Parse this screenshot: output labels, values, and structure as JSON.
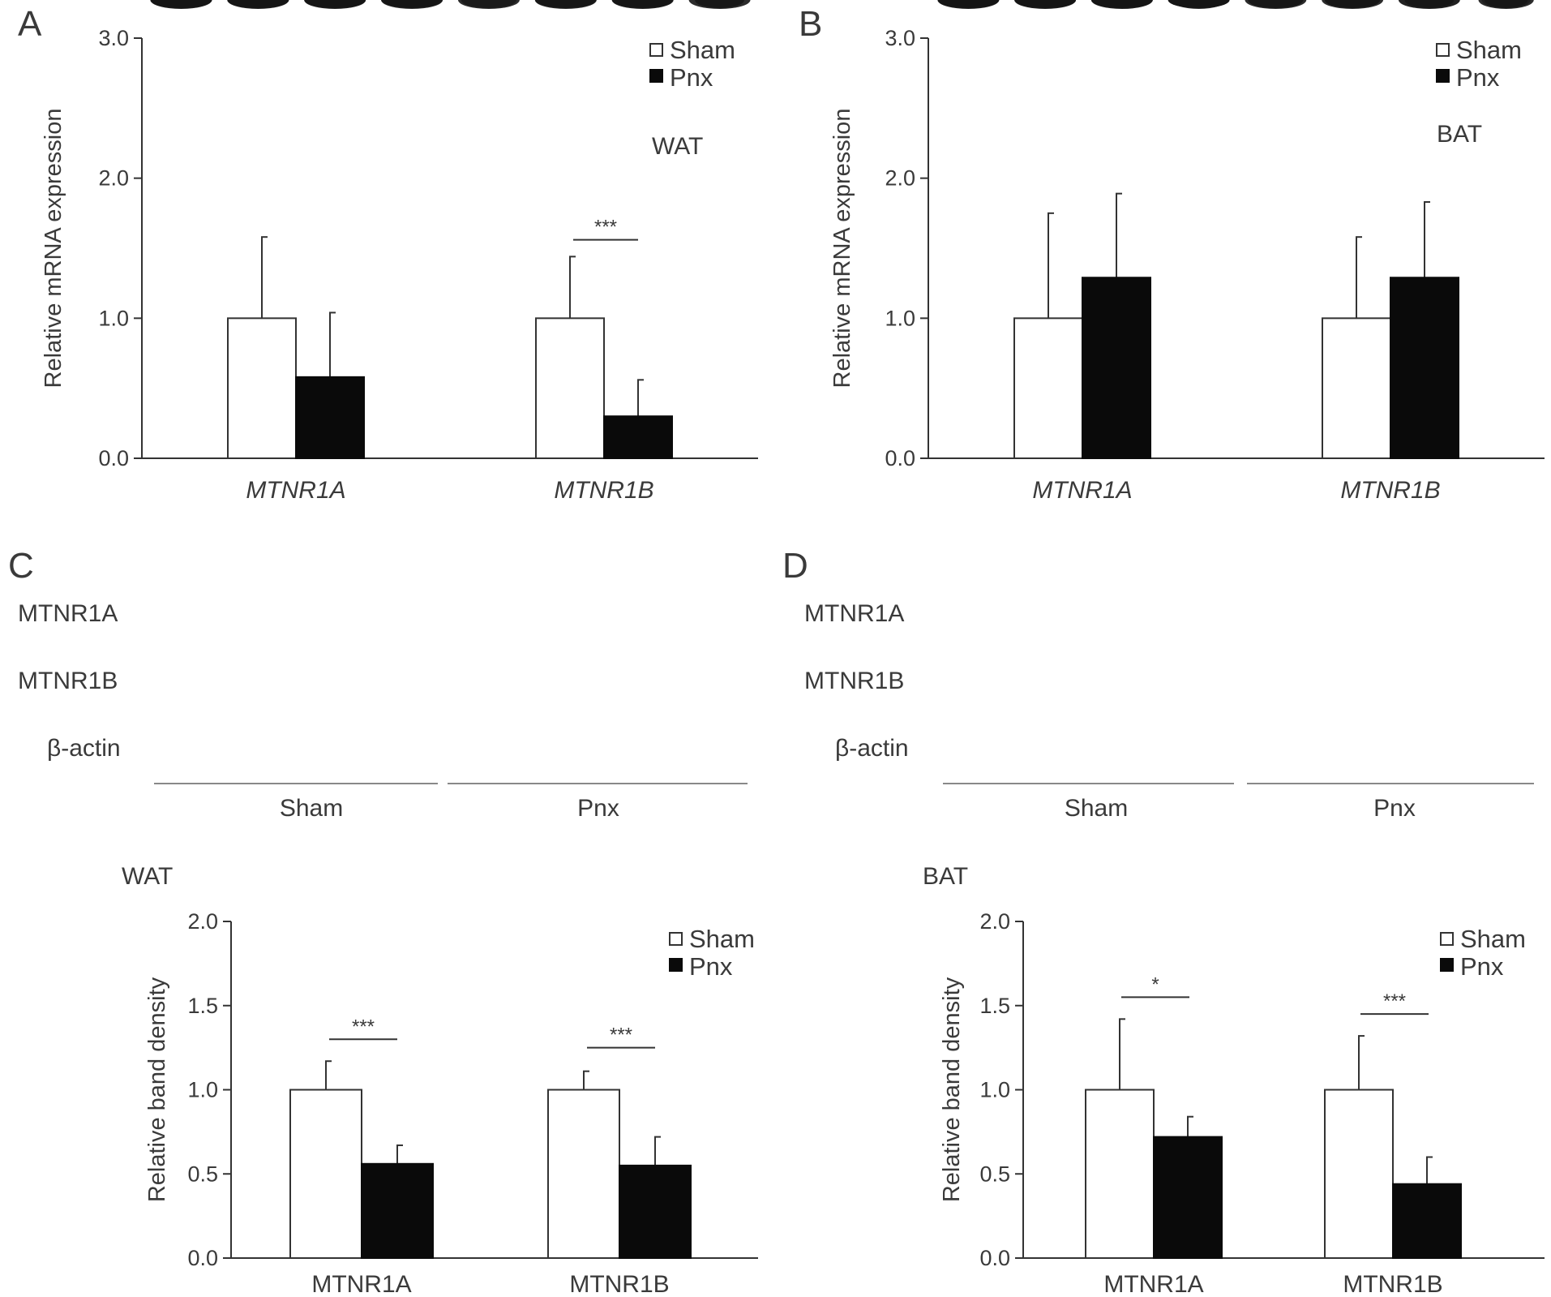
{
  "panel_letters": {
    "A": "A",
    "B": "B",
    "C": "C",
    "D": "D"
  },
  "colors": {
    "sham": "#ffffff",
    "pnx": "#0a0a0a",
    "axis": "#333333",
    "blot_bg": "#cfcfcf"
  },
  "legend": {
    "sham": "Sham",
    "pnx": "Pnx"
  },
  "blots": {
    "C": {
      "rows": [
        "MTNR1A",
        "MTNR1B",
        "β-actin"
      ],
      "groups": [
        "Sham",
        "Pnx"
      ]
    },
    "D": {
      "rows": [
        "MTNR1A",
        "MTNR1B",
        "β-actin"
      ],
      "groups": [
        "Sham",
        "Pnx"
      ]
    }
  },
  "chart_data": [
    {
      "id": "A",
      "type": "bar",
      "annotation": "WAT",
      "ylabel": "Relative mRNA expression",
      "xlabel": "",
      "categories": [
        "MTNR1A",
        "MTNR1B"
      ],
      "category_style": "italic",
      "ylim": [
        0,
        3
      ],
      "yticks": [
        "0.0",
        "1.0",
        "2.0",
        "3.0"
      ],
      "series": [
        {
          "name": "Sham",
          "values": [
            1.0,
            1.0
          ],
          "errors": [
            0.58,
            0.44
          ]
        },
        {
          "name": "Pnx",
          "values": [
            0.58,
            0.3
          ],
          "errors": [
            0.46,
            0.26
          ]
        }
      ],
      "significance": [
        {
          "category": 1,
          "label": "***",
          "y": 1.56
        }
      ],
      "grid": false,
      "legend_position": "top-right"
    },
    {
      "id": "B",
      "type": "bar",
      "annotation": "BAT",
      "ylabel": "Relative mRNA expression",
      "xlabel": "",
      "categories": [
        "MTNR1A",
        "MTNR1B"
      ],
      "category_style": "italic",
      "ylim": [
        0,
        3
      ],
      "yticks": [
        "0.0",
        "1.0",
        "2.0",
        "3.0"
      ],
      "series": [
        {
          "name": "Sham",
          "values": [
            1.0,
            1.0
          ],
          "errors": [
            0.75,
            0.58
          ]
        },
        {
          "name": "Pnx",
          "values": [
            1.29,
            1.29
          ],
          "errors": [
            0.6,
            0.54
          ]
        }
      ],
      "significance": [],
      "grid": false,
      "legend_position": "top-right"
    },
    {
      "id": "C",
      "type": "bar",
      "annotation": "WAT",
      "ylabel": "Relative band density",
      "xlabel": "",
      "categories": [
        "MTNR1A",
        "MTNR1B"
      ],
      "category_style": "normal",
      "ylim": [
        0,
        2
      ],
      "yticks": [
        "0.0",
        "0.5",
        "1.0",
        "1.5",
        "2.0"
      ],
      "series": [
        {
          "name": "Sham",
          "values": [
            1.0,
            1.0
          ],
          "errors": [
            0.17,
            0.11
          ]
        },
        {
          "name": "Pnx",
          "values": [
            0.56,
            0.55
          ],
          "errors": [
            0.11,
            0.17
          ]
        }
      ],
      "significance": [
        {
          "category": 0,
          "label": "***",
          "y": 1.3
        },
        {
          "category": 1,
          "label": "***",
          "y": 1.25
        }
      ],
      "grid": false,
      "legend_position": "top-right"
    },
    {
      "id": "D",
      "type": "bar",
      "annotation": "BAT",
      "ylabel": "Relative band density",
      "xlabel": "",
      "categories": [
        "MTNR1A",
        "MTNR1B"
      ],
      "category_style": "normal",
      "ylim": [
        0,
        2
      ],
      "yticks": [
        "0.0",
        "0.5",
        "1.0",
        "1.5",
        "2.0"
      ],
      "series": [
        {
          "name": "Sham",
          "values": [
            1.0,
            1.0
          ],
          "errors": [
            0.42,
            0.32
          ]
        },
        {
          "name": "Pnx",
          "values": [
            0.72,
            0.44
          ],
          "errors": [
            0.12,
            0.16
          ]
        }
      ],
      "significance": [
        {
          "category": 0,
          "label": "*",
          "y": 1.55
        },
        {
          "category": 1,
          "label": "***",
          "y": 1.45
        }
      ],
      "grid": false,
      "legend_position": "top-right"
    }
  ]
}
